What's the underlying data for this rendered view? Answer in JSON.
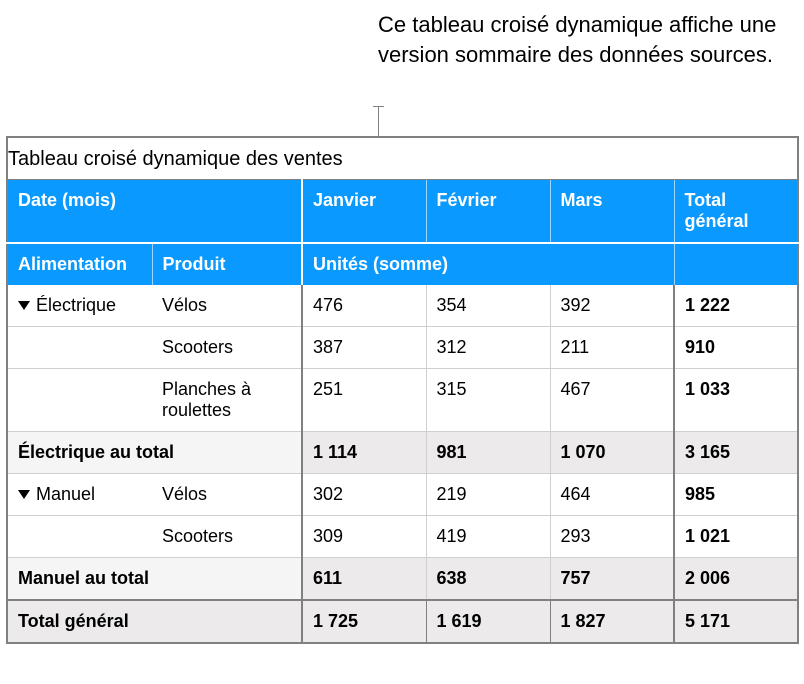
{
  "caption": "Ce tableau croisé dynamique affiche une version sommaire des données sources.",
  "table": {
    "title": "Tableau croisé dynamique des ventes",
    "date_label": "Date (mois)",
    "months": [
      "Janvier",
      "Février",
      "Mars"
    ],
    "grand_total_col_label": "Total général",
    "alimentation_label": "Alimentation",
    "produit_label": "Produit",
    "units_label": "Unités (somme)",
    "groups": [
      {
        "name": "Électrique",
        "subtotal_label": "Électrique au total",
        "rows": [
          {
            "product": "Vélos",
            "values": [
              "476",
              "354",
              "392"
            ],
            "total": "1 222"
          },
          {
            "product": "Scooters",
            "values": [
              "387",
              "312",
              "211"
            ],
            "total": "910"
          },
          {
            "product": "Planches à roulettes",
            "values": [
              "251",
              "315",
              "467"
            ],
            "total": "1 033"
          }
        ],
        "subtotal": {
          "values": [
            "1 114",
            "981",
            "1 070"
          ],
          "total": "3 165"
        }
      },
      {
        "name": "Manuel",
        "subtotal_label": "Manuel au total",
        "rows": [
          {
            "product": "Vélos",
            "values": [
              "302",
              "219",
              "464"
            ],
            "total": "985"
          },
          {
            "product": "Scooters",
            "values": [
              "309",
              "419",
              "293"
            ],
            "total": "1 021"
          }
        ],
        "subtotal": {
          "values": [
            "611",
            "638",
            "757"
          ],
          "total": "2 006"
        }
      }
    ],
    "grand_total_label": "Total général",
    "grand_total": {
      "values": [
        "1 725",
        "1 619",
        "1 827"
      ],
      "total": "5 171"
    }
  },
  "style": {
    "header_bg": "#0a99ff",
    "header_fg": "#ffffff",
    "subtotal_bg": "#eceaea",
    "subtotal_label_bg": "#f5f5f5",
    "border_color": "#808080",
    "cell_border": "#cfcfcf",
    "font_size_body": 18,
    "font_size_title": 20,
    "font_size_caption": 22
  }
}
